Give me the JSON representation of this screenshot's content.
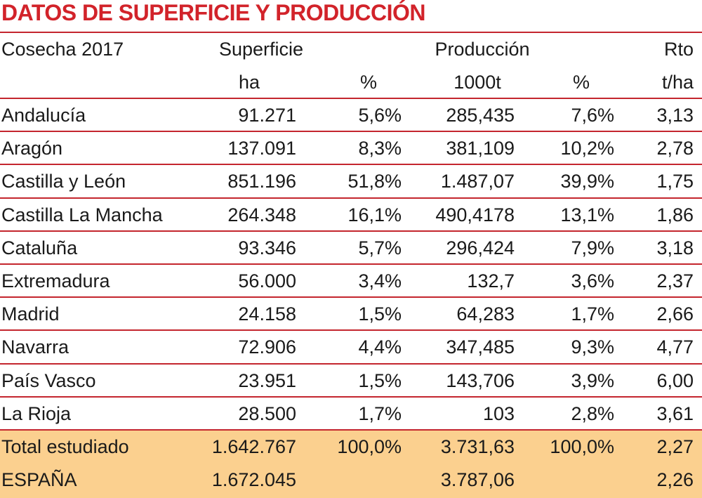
{
  "header": {
    "title": "DATOS DE SUPERFICIE Y PRODUCCIÓN",
    "caption": "Cosecha 2017"
  },
  "table": {
    "columns": [
      {
        "group": "Superficie",
        "unit": "ha"
      },
      {
        "unit": "%"
      },
      {
        "group": "Producción",
        "unit": "1000t"
      },
      {
        "unit": "%"
      },
      {
        "group": "Rto",
        "unit": "t/ha"
      }
    ],
    "rows": [
      [
        "Andalucía",
        "91.271",
        "5,6%",
        "285,435",
        "7,6%",
        "3,13"
      ],
      [
        "Aragón",
        "137.091",
        "8,3%",
        "381,109",
        "10,2%",
        "2,78"
      ],
      [
        "Castilla y León",
        "851.196",
        "51,8%",
        "1.487,07",
        "39,9%",
        "1,75"
      ],
      [
        "Castilla La Mancha",
        "264.348",
        "16,1%",
        "490,4178",
        "13,1%",
        "1,86"
      ],
      [
        "Cataluña",
        "93.346",
        "5,7%",
        "296,424",
        "7,9%",
        "3,18"
      ],
      [
        "Extremadura",
        "56.000",
        "3,4%",
        "132,7",
        "3,6%",
        "2,37"
      ],
      [
        "Madrid",
        "24.158",
        "1,5%",
        "64,283",
        "1,7%",
        "2,66"
      ],
      [
        "Navarra",
        "72.906",
        "4,4%",
        "347,485",
        "9,3%",
        "4,77"
      ],
      [
        "País Vasco",
        "23.951",
        "1,5%",
        "143,706",
        "3,9%",
        "6,00"
      ],
      [
        "La Rioja",
        "28.500",
        "1,7%",
        "103",
        "2,8%",
        "3,61"
      ]
    ],
    "totals": [
      [
        "Total estudiado",
        "1.642.767",
        "100,0%",
        "3.731,63",
        "100,0%",
        "2,27"
      ],
      [
        "ESPAÑA",
        "1.672.045",
        null,
        "3.787,06",
        null,
        "2,26"
      ]
    ]
  }
}
